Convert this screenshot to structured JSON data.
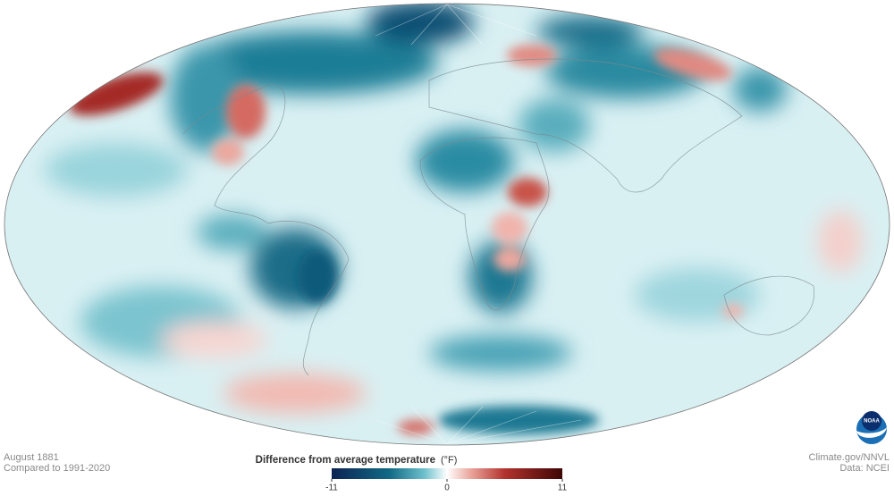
{
  "map": {
    "date": "August 1881",
    "baseline": "Compared to 1991-2020",
    "legend": {
      "title": "Difference from average temperature",
      "unit": "(°F)",
      "min": -11,
      "max": 11,
      "ticks": [
        -11,
        0,
        11
      ]
    },
    "credit": "Climate.gov/NNVL",
    "source": "Data: NCEI",
    "logo": "NOAA"
  }
}
